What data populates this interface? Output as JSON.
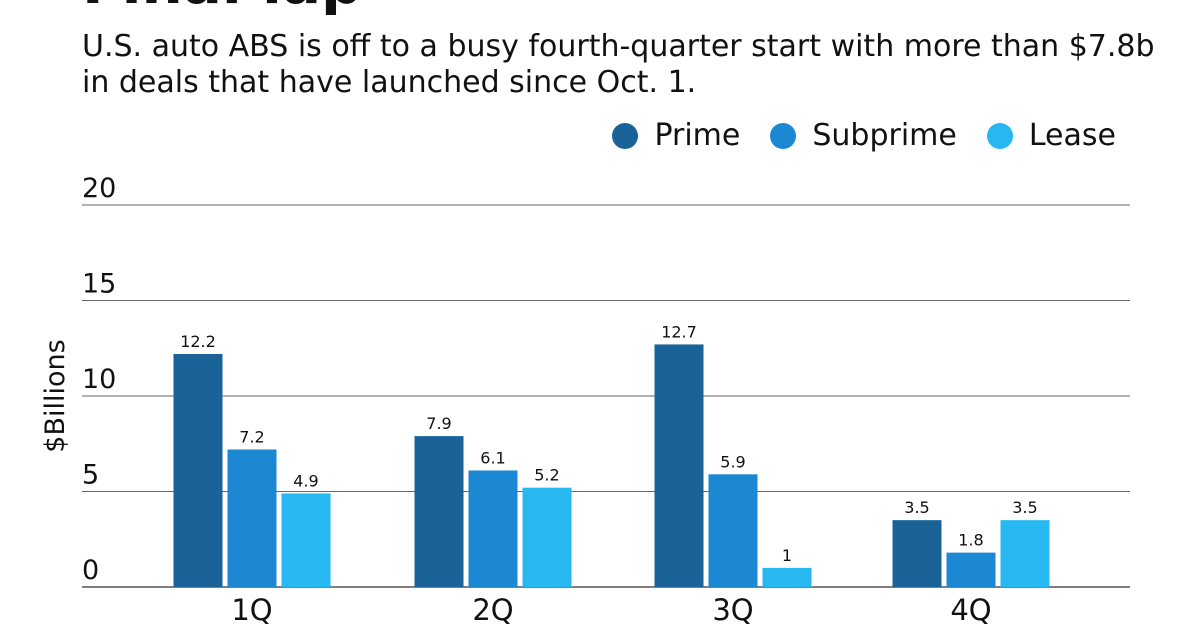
{
  "header": {
    "title": "Final lap",
    "subtitle": "U.S. auto ABS is off to a busy fourth-quarter start with more than $7.8b in deals that have launched since Oct. 1."
  },
  "legend": {
    "items": [
      {
        "label": "Prime",
        "color": "#1a6399"
      },
      {
        "label": "Subprime",
        "color": "#1c87d2"
      },
      {
        "label": "Lease",
        "color": "#27b8f1"
      }
    ]
  },
  "chart_data": {
    "type": "bar",
    "categories": [
      "1Q",
      "2Q",
      "3Q",
      "4Q"
    ],
    "series": [
      {
        "name": "Prime",
        "values": [
          12.2,
          7.9,
          12.7,
          3.5
        ],
        "color": "#1a6399"
      },
      {
        "name": "Subprime",
        "values": [
          7.2,
          6.1,
          5.9,
          1.8
        ],
        "color": "#1c87d2"
      },
      {
        "name": "Lease",
        "values": [
          4.9,
          5.2,
          1,
          3.5
        ],
        "color": "#27b8f1"
      }
    ],
    "title": "Final lap",
    "subtitle": "U.S. auto ABS is off to a busy fourth-quarter start with more than $7.8b in deals that have launched since Oct. 1.",
    "xlabel": "",
    "ylabel": "$Billions",
    "ylim": [
      0,
      20
    ],
    "yticks": [
      0,
      5,
      10,
      15,
      20
    ],
    "grid": true,
    "legend_position": "top-right"
  }
}
